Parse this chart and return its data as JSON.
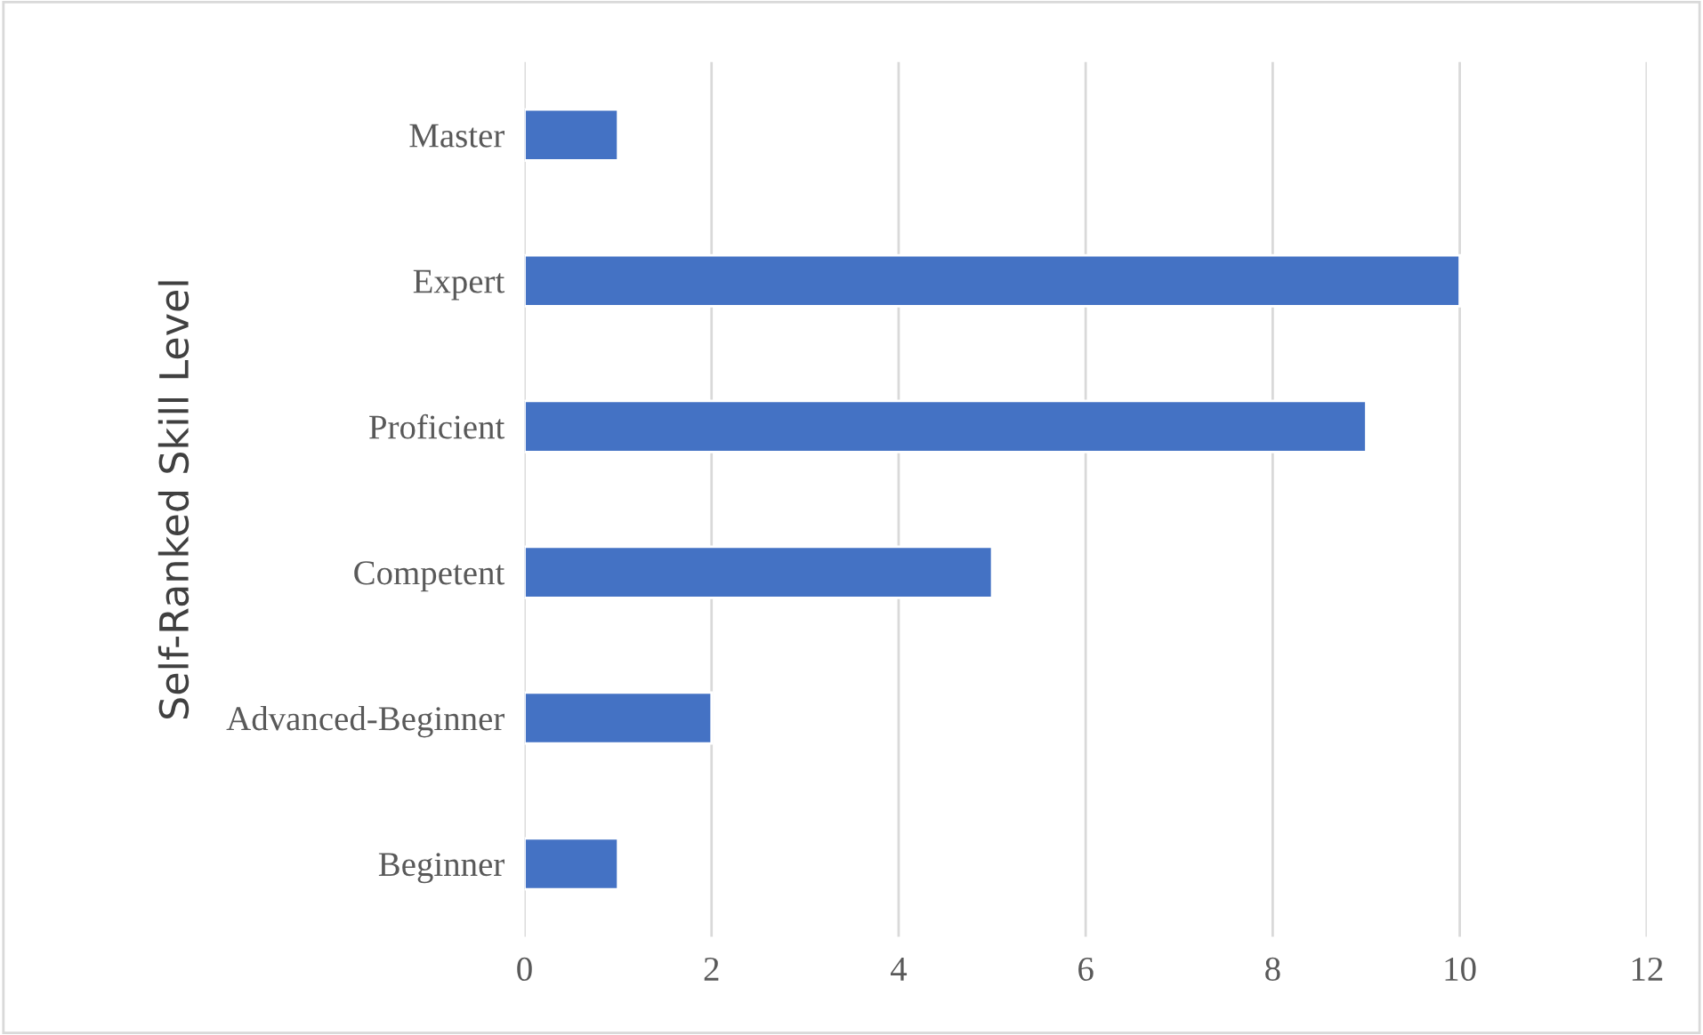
{
  "chart_data": {
    "type": "bar",
    "orientation": "horizontal",
    "ylabel": "Self-Ranked Skill Level",
    "categories": [
      "Master",
      "Expert",
      "Proficient",
      "Competent",
      "Advanced-Beginner",
      "Beginner"
    ],
    "values": [
      1,
      10,
      9,
      5,
      2,
      1
    ],
    "color": "#4472c4",
    "xlim": [
      0,
      12
    ],
    "xticks": [
      0,
      2,
      4,
      6,
      8,
      10,
      12
    ],
    "grid": "x",
    "legend": false
  }
}
